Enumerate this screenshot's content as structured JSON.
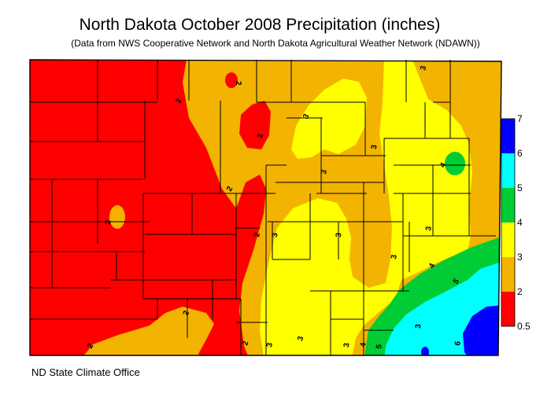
{
  "header": {
    "title": "North Dakota October 2008 Precipitation (inches)",
    "subtitle": "(Data from NWS Cooperative Network and North Dakota Agricultural Weather Network (NDAWN))"
  },
  "footer": {
    "credit": "ND State Climate Office"
  },
  "legend": {
    "ticks": [
      "7",
      "6",
      "5",
      "4",
      "3",
      "2",
      "0.5"
    ],
    "bins": [
      {
        "range": "6-7",
        "color": "#0000ff"
      },
      {
        "range": "5-6",
        "color": "#00ffff"
      },
      {
        "range": "4-5",
        "color": "#00cc33"
      },
      {
        "range": "3-4",
        "color": "#ffff00"
      },
      {
        "range": "2-3",
        "color": "#f2b400"
      },
      {
        "range": "0.5-2",
        "color": "#ff0000"
      }
    ]
  },
  "contour_labels": [
    "2",
    "2",
    "2",
    "2",
    "2",
    "2",
    "2",
    "2",
    "2",
    "3",
    "3",
    "3",
    "3",
    "3",
    "3",
    "3",
    "3",
    "3",
    "3",
    "3",
    "3",
    "4",
    "4",
    "4",
    "5",
    "5",
    "6"
  ]
}
